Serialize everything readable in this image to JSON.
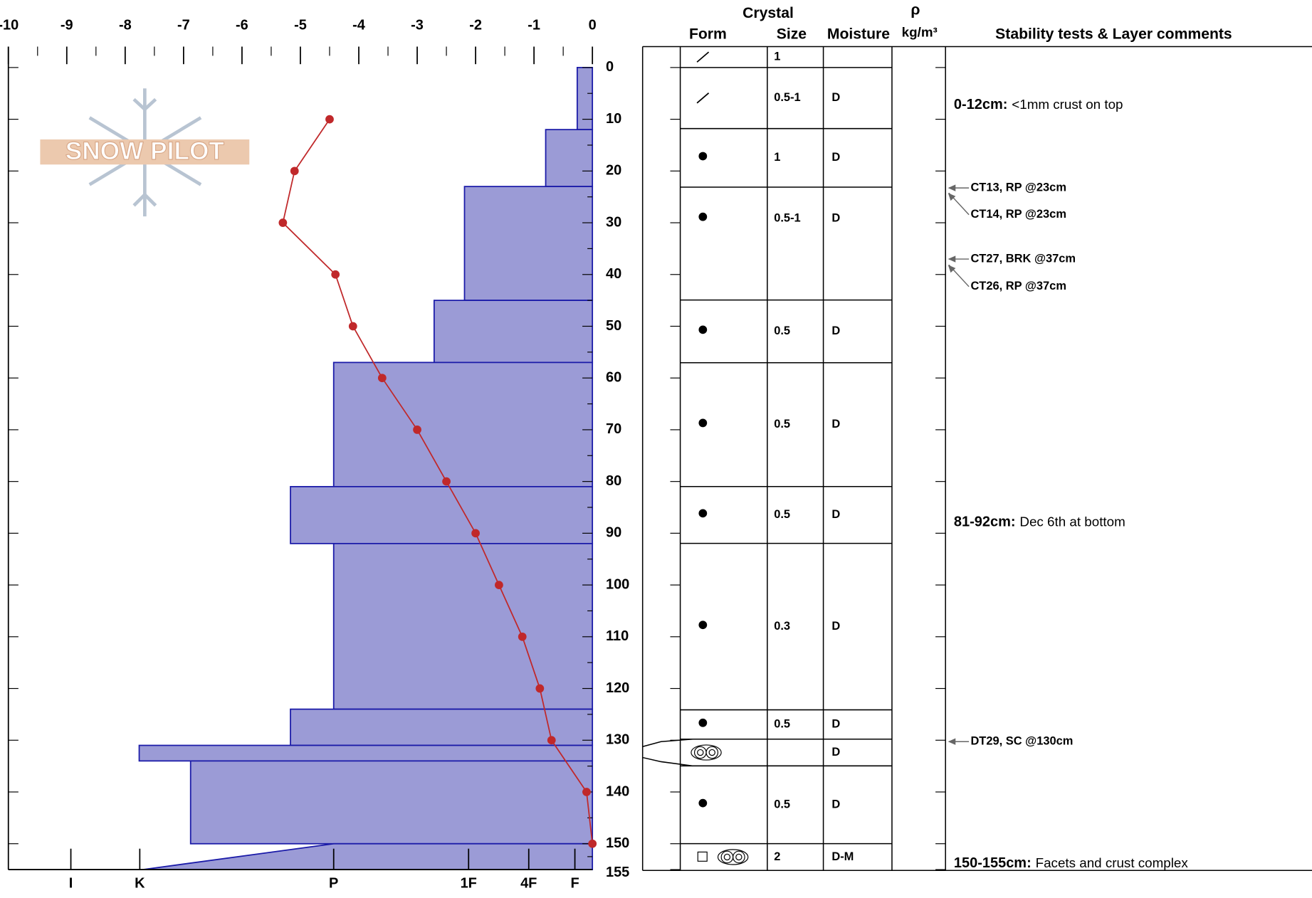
{
  "chart_data": {
    "type": "snow-profile",
    "logo": "SNOW PILOT",
    "xlim": [
      -10,
      0
    ],
    "xticks": [
      -10,
      -9,
      -8,
      -7,
      -6,
      -5,
      -4,
      -3,
      -2,
      -1,
      0
    ],
    "hardness_ticks": [
      {
        "value": -8.93,
        "label": "I"
      },
      {
        "value": -7.75,
        "label": "K"
      },
      {
        "value": -4.43,
        "label": "P"
      },
      {
        "value": -2.12,
        "label": "1F"
      },
      {
        "value": -1.09,
        "label": "4F"
      },
      {
        "value": -0.3,
        "label": "F"
      }
    ],
    "depth_lim": [
      0,
      155
    ],
    "depth_ticks": [
      0,
      10,
      20,
      30,
      40,
      50,
      60,
      70,
      80,
      90,
      100,
      110,
      120,
      130,
      140,
      150,
      155
    ],
    "layer_fill": "#9b9bd6",
    "layer_stroke": "#1a1aa8",
    "layers": [
      {
        "depth": [
          0,
          12
        ],
        "hardness": [
          -0.26,
          -0.26
        ]
      },
      {
        "depth": [
          12,
          23
        ],
        "hardness": [
          -0.8,
          -0.8
        ]
      },
      {
        "depth": [
          23,
          45
        ],
        "hardness": [
          -2.19,
          -2.19
        ]
      },
      {
        "depth": [
          45,
          57
        ],
        "hardness": [
          -2.71,
          -2.71
        ]
      },
      {
        "depth": [
          57,
          81
        ],
        "hardness": [
          -4.43,
          -4.43
        ]
      },
      {
        "depth": [
          81,
          92
        ],
        "hardness": [
          -5.17,
          -5.17
        ]
      },
      {
        "depth": [
          92,
          124
        ],
        "hardness": [
          -4.43,
          -4.43
        ]
      },
      {
        "depth": [
          124,
          131
        ],
        "hardness": [
          -5.17,
          -5.17
        ]
      },
      {
        "depth": [
          131,
          134
        ],
        "hardness": [
          -7.76,
          -7.76
        ]
      },
      {
        "depth": [
          134,
          150
        ],
        "hardness": [
          -6.88,
          -6.88
        ]
      },
      {
        "depth": [
          150,
          155
        ],
        "hardness": [
          -4.43,
          -7.7
        ]
      }
    ],
    "temperature": {
      "color": "#c0282a",
      "depth": [
        10,
        20,
        30,
        40,
        50,
        60,
        70,
        80,
        90,
        100,
        110,
        120,
        130,
        140,
        150
      ],
      "values": [
        -4.5,
        -5.1,
        -5.3,
        -4.4,
        -4.1,
        -3.6,
        -3.0,
        -2.5,
        -2.0,
        -1.6,
        -1.2,
        -0.9,
        -0.7,
        -0.1,
        0.0
      ]
    }
  },
  "table": {
    "headers": {
      "crystal": "Crystal",
      "form": "Form",
      "size": "Size",
      "moisture": "Moisture",
      "rho": "ρ",
      "density": "kg/m³",
      "comments": "Stability tests & Layer comments"
    },
    "rows": [
      {
        "size": "1"
      },
      {
        "size": "0.5-1",
        "moisture": "D"
      },
      {
        "size": "1",
        "moisture": "D"
      },
      {
        "size": "0.5-1",
        "moisture": "D"
      },
      {
        "size": "0.5",
        "moisture": "D"
      },
      {
        "size": "0.5",
        "moisture": "D"
      },
      {
        "size": "0.5",
        "moisture": "D"
      },
      {
        "size": "0.3",
        "moisture": "D"
      },
      {
        "size": "0.5",
        "moisture": "D"
      },
      {
        "moisture": "D"
      },
      {
        "size": "0.5",
        "moisture": "D"
      },
      {
        "size": "2",
        "moisture": "D-M"
      }
    ],
    "comments": [
      {
        "range": "0-12cm:",
        "text": "<1mm crust on top"
      },
      {
        "range": "81-92cm:",
        "text": "Dec 6th at bottom"
      },
      {
        "range": "150-155cm:",
        "text": "Facets and crust complex"
      }
    ],
    "tests": [
      "CT13, RP @23cm",
      "CT14, RP @23cm",
      "CT27, BRK @37cm",
      "CT26, RP @37cm",
      "DT29, SC @130cm"
    ]
  }
}
